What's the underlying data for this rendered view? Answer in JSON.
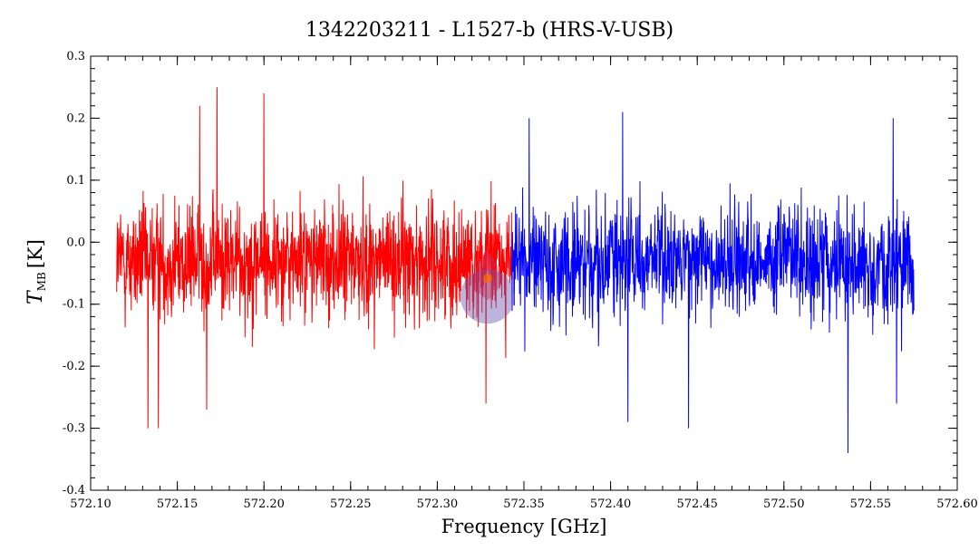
{
  "chart_data": {
    "type": "line",
    "title": "1342203211 - L1527-b (HRS-V-USB)",
    "xlabel": "Frequency [GHz]",
    "ylabel_main": "T",
    "ylabel_sub": "MB",
    "ylabel_unit": "[K]",
    "xlim": [
      572.1,
      572.6
    ],
    "ylim": [
      -0.4,
      0.3
    ],
    "xticks": [
      572.1,
      572.15,
      572.2,
      572.25,
      572.3,
      572.35,
      572.4,
      572.45,
      572.5,
      572.55,
      572.6
    ],
    "xtick_labels": [
      "572.10",
      "572.15",
      "572.20",
      "572.25",
      "572.30",
      "572.35",
      "572.40",
      "572.45",
      "572.50",
      "572.55",
      "572.60"
    ],
    "yticks": [
      -0.4,
      -0.3,
      -0.2,
      -0.1,
      0.0,
      0.1,
      0.2,
      0.3
    ],
    "ytick_labels": [
      "-0.4",
      "-0.3",
      "-0.2",
      "-0.1",
      "0.0",
      "0.1",
      "0.2",
      "0.3"
    ],
    "grid": false,
    "series": [
      {
        "color": "#ff0000",
        "x_start": 572.115,
        "x_end": 572.343,
        "n_points": 1300,
        "noise_rms": 0.075,
        "mean": -0.03,
        "extrema": [
          {
            "x": 572.173,
            "y": 0.25
          },
          {
            "x": 572.2,
            "y": 0.24
          },
          {
            "x": 572.163,
            "y": 0.22
          },
          {
            "x": 572.133,
            "y": -0.3
          },
          {
            "x": 572.139,
            "y": -0.3
          },
          {
            "x": 572.167,
            "y": -0.27
          },
          {
            "x": 572.328,
            "y": -0.26
          }
        ]
      },
      {
        "color": "#0000ff",
        "x_start": 572.343,
        "x_end": 572.575,
        "n_points": 1300,
        "noise_rms": 0.072,
        "mean": -0.03,
        "extrema": [
          {
            "x": 572.353,
            "y": 0.2
          },
          {
            "x": 572.407,
            "y": 0.21
          },
          {
            "x": 572.563,
            "y": 0.2
          },
          {
            "x": 572.537,
            "y": -0.34
          },
          {
            "x": 572.41,
            "y": -0.29
          },
          {
            "x": 572.445,
            "y": -0.3
          },
          {
            "x": 572.565,
            "y": -0.26
          }
        ]
      }
    ],
    "annotation": {
      "x": 572.329,
      "y": -0.07,
      "description": "translucent marker"
    }
  }
}
